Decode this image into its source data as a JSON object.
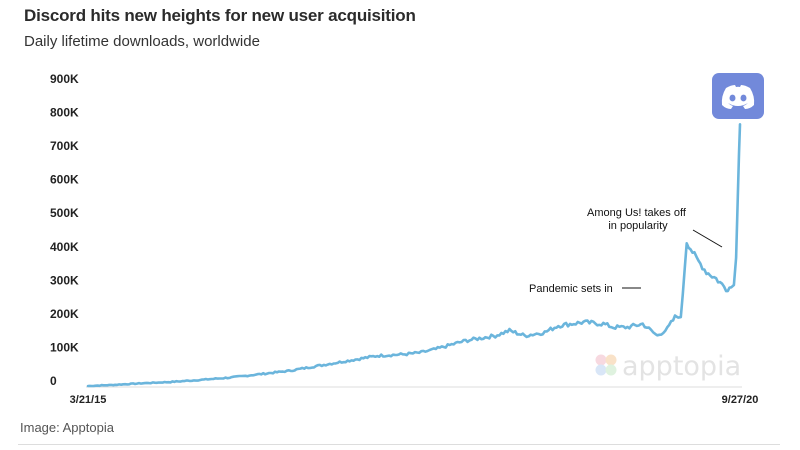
{
  "header": {
    "title": "Discord hits new heights for new user acquisition",
    "subtitle": "Daily lifetime downloads, worldwide"
  },
  "footer": {
    "caption": "Image: Apptopia"
  },
  "watermark": {
    "text": "apptopia"
  },
  "logo": {
    "name": "discord-logo",
    "bg_color": "#7289da"
  },
  "colors": {
    "line": "#6bb5dc",
    "baseline": "#dddddd"
  },
  "chart_data": {
    "type": "line",
    "title": "Discord hits new heights for new user acquisition",
    "subtitle": "Daily lifetime downloads, worldwide",
    "xlabel": "",
    "ylabel": "",
    "ylim": [
      0,
      900000
    ],
    "yticks": [
      0,
      100000,
      200000,
      300000,
      400000,
      500000,
      600000,
      700000,
      800000,
      900000
    ],
    "ytick_labels": [
      "0",
      "100K",
      "200K",
      "300K",
      "400K",
      "500K",
      "600K",
      "700K",
      "800K",
      "900K"
    ],
    "xticks": [
      "3/21/15",
      "9/27/20"
    ],
    "grid": false,
    "legend": "none",
    "annotations": [
      "Pandemic sets in",
      "Among Us! takes off\nin popularity"
    ],
    "series": [
      {
        "x": [
          "2015-03-21",
          "2015-06-01",
          "2015-09-01",
          "2015-12-01",
          "2016-03-01",
          "2016-06-01",
          "2016-09-01",
          "2016-12-01",
          "2017-03-01",
          "2017-06-01",
          "2017-09-01",
          "2017-12-01",
          "2018-01-15",
          "2018-03-01",
          "2018-06-01",
          "2018-09-01",
          "2018-10-15",
          "2018-12-01",
          "2019-02-01",
          "2019-03-15",
          "2019-06-01",
          "2019-08-01",
          "2019-09-01",
          "2019-10-15",
          "2019-12-01",
          "2020-01-15",
          "2020-02-15",
          "2020-03-10",
          "2020-03-20",
          "2020-03-28",
          "2020-04-15",
          "2020-05-15",
          "2020-06-15",
          "2020-07-15",
          "2020-08-15",
          "2020-08-31",
          "2020-09-08",
          "2020-09-15",
          "2020-09-20",
          "2020-09-24",
          "2020-09-27"
        ],
        "y": [
          0,
          3000,
          8000,
          12000,
          18000,
          25000,
          35000,
          45000,
          60000,
          75000,
          90000,
          95000,
          100000,
          110000,
          135000,
          150000,
          165000,
          150000,
          160000,
          180000,
          190000,
          185000,
          175000,
          175000,
          185000,
          150000,
          170000,
          205000,
          210000,
          200000,
          430000,
          380000,
          340000,
          320000,
          290000,
          295000,
          310000,
          380000,
          560000,
          700000,
          780000
        ]
      }
    ]
  }
}
